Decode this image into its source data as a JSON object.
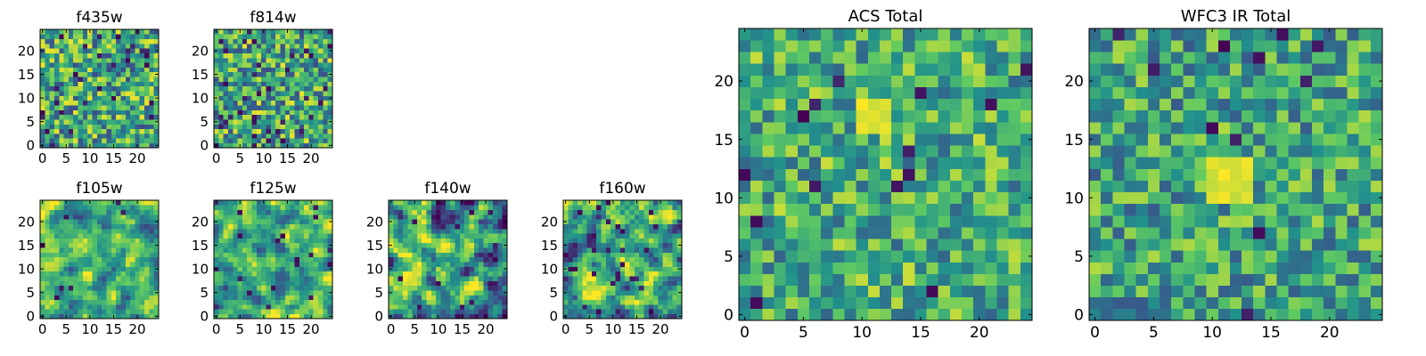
{
  "colormap": {
    "name": "viridis",
    "stops": [
      "#440154",
      "#3b528b",
      "#21918c",
      "#5ec962",
      "#fde725"
    ]
  },
  "chart_data": [
    {
      "type": "heatmap",
      "title": "f435w",
      "grid_size": 25,
      "data_source": "viridis-grid-25x25",
      "xlim": [
        0,
        24
      ],
      "ylim": [
        0,
        24
      ],
      "xticks": [
        0,
        5,
        10,
        15,
        20
      ],
      "yticks": [
        0,
        5,
        10,
        15,
        20
      ],
      "xticklabels": [
        "0",
        "5",
        "10",
        "15",
        "20"
      ],
      "yticklabels": [
        "0",
        "5",
        "10",
        "15",
        "20"
      ],
      "seed": 11,
      "smooth": 0,
      "bias": 0.6,
      "spread": 0.75,
      "dark_rate": 0.05
    },
    {
      "type": "heatmap",
      "title": "f814w",
      "grid_size": 25,
      "data_source": "viridis-grid-25x25",
      "xlim": [
        0,
        24
      ],
      "ylim": [
        0,
        24
      ],
      "xticks": [
        0,
        5,
        10,
        15,
        20
      ],
      "yticks": [
        0,
        5,
        10,
        15,
        20
      ],
      "xticklabels": [
        "0",
        "5",
        "10",
        "15",
        "20"
      ],
      "yticklabels": [
        "0",
        "5",
        "10",
        "15",
        "20"
      ],
      "seed": 23,
      "smooth": 0,
      "bias": 0.6,
      "spread": 0.75,
      "dark_rate": 0.05
    },
    {
      "type": "heatmap",
      "title": "f105w",
      "grid_size": 25,
      "data_source": "viridis-grid-25x25",
      "xlim": [
        0,
        24
      ],
      "ylim": [
        0,
        24
      ],
      "xticks": [
        0,
        5,
        10,
        15,
        20
      ],
      "yticks": [
        0,
        5,
        10,
        15,
        20
      ],
      "xticklabels": [
        "0",
        "5",
        "10",
        "15",
        "20"
      ],
      "yticklabels": [
        "0",
        "5",
        "10",
        "15",
        "20"
      ],
      "seed": 37,
      "smooth": 1,
      "bias": 0.63,
      "spread": 0.65,
      "dark_rate": 0.01
    },
    {
      "type": "heatmap",
      "title": "f125w",
      "grid_size": 25,
      "data_source": "viridis-grid-25x25",
      "xlim": [
        0,
        24
      ],
      "ylim": [
        0,
        24
      ],
      "xticks": [
        0,
        5,
        10,
        15,
        20
      ],
      "yticks": [
        0,
        5,
        10,
        15,
        20
      ],
      "xticklabels": [
        "0",
        "5",
        "10",
        "15",
        "20"
      ],
      "yticklabels": [
        "0",
        "5",
        "10",
        "15",
        "20"
      ],
      "seed": 41,
      "smooth": 1,
      "bias": 0.62,
      "spread": 0.7,
      "dark_rate": 0.02
    },
    {
      "type": "heatmap",
      "title": "f140w",
      "grid_size": 25,
      "data_source": "viridis-grid-25x25",
      "xlim": [
        0,
        24
      ],
      "ylim": [
        0,
        24
      ],
      "xticks": [
        0,
        5,
        10,
        15,
        20
      ],
      "yticks": [
        0,
        5,
        10,
        15,
        20
      ],
      "xticklabels": [
        "0",
        "5",
        "10",
        "15",
        "20"
      ],
      "yticklabels": [
        "0",
        "5",
        "10",
        "15",
        "20"
      ],
      "seed": 53,
      "smooth": 1,
      "bias": 0.58,
      "spread": 0.85,
      "dark_rate": 0.03
    },
    {
      "type": "heatmap",
      "title": "f160w",
      "grid_size": 25,
      "data_source": "viridis-grid-25x25",
      "xlim": [
        0,
        24
      ],
      "ylim": [
        0,
        24
      ],
      "xticks": [
        0,
        5,
        10,
        15,
        20
      ],
      "yticks": [
        0,
        5,
        10,
        15,
        20
      ],
      "xticklabels": [
        "0",
        "5",
        "10",
        "15",
        "20"
      ],
      "yticklabels": [
        "0",
        "5",
        "10",
        "15",
        "20"
      ],
      "seed": 67,
      "smooth": 1,
      "bias": 0.62,
      "spread": 0.8,
      "dark_rate": 0.03
    },
    {
      "type": "heatmap",
      "title": "ACS Total",
      "grid_size": 25,
      "data_source": "viridis-grid-25x25",
      "xlim": [
        0,
        24
      ],
      "ylim": [
        0,
        24
      ],
      "xticks": [
        0,
        5,
        10,
        15,
        20
      ],
      "yticks": [
        0,
        5,
        10,
        15,
        20
      ],
      "xticklabels": [
        "0",
        "5",
        "10",
        "15",
        "20"
      ],
      "yticklabels": [
        "0",
        "5",
        "10",
        "15",
        "20"
      ],
      "seed": 79,
      "smooth": 0,
      "bias": 0.62,
      "spread": 0.6,
      "dark_rate": 0.035,
      "bright_region": [
        10,
        16,
        12,
        18
      ]
    },
    {
      "type": "heatmap",
      "title": "WFC3 IR Total",
      "grid_size": 25,
      "data_source": "viridis-grid-25x25",
      "xlim": [
        0,
        24
      ],
      "ylim": [
        0,
        24
      ],
      "xticks": [
        0,
        5,
        10,
        15,
        20
      ],
      "yticks": [
        0,
        5,
        10,
        15,
        20
      ],
      "xticklabels": [
        "0",
        "5",
        "10",
        "15",
        "20"
      ],
      "yticklabels": [
        "0",
        "5",
        "10",
        "15",
        "20"
      ],
      "seed": 97,
      "smooth": 0,
      "bias": 0.58,
      "spread": 0.6,
      "dark_rate": 0.025,
      "bright_region": [
        10,
        10,
        13,
        13
      ]
    }
  ]
}
